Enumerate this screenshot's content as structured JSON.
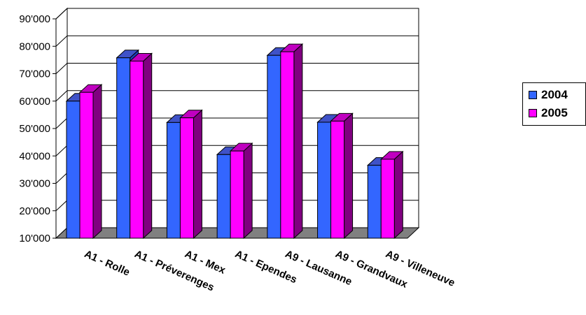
{
  "chart_data": {
    "type": "bar",
    "title": "",
    "xlabel": "",
    "ylabel": "",
    "ylim": [
      10000,
      90000
    ],
    "yticks": [
      "10'000",
      "20'000",
      "30'000",
      "40'000",
      "50'000",
      "60'000",
      "70'000",
      "80'000",
      "90'000"
    ],
    "categories": [
      "A1 - Rolle",
      "A1 - Préverenges",
      "A1 - Mex",
      "A1 - Ependes",
      "A9 - Lausanne",
      "A9 - Grandvaux",
      "A9 - Villeneuve"
    ],
    "series": [
      {
        "name": "2004",
        "values": [
          60000,
          75800,
          52200,
          40500,
          76700,
          52300,
          36600
        ],
        "color": "#3366ff"
      },
      {
        "name": "2005",
        "values": [
          63200,
          74600,
          53900,
          41800,
          78000,
          52700,
          38800
        ],
        "color": "#ff00ff"
      }
    ],
    "grid": true,
    "legend": "right"
  }
}
